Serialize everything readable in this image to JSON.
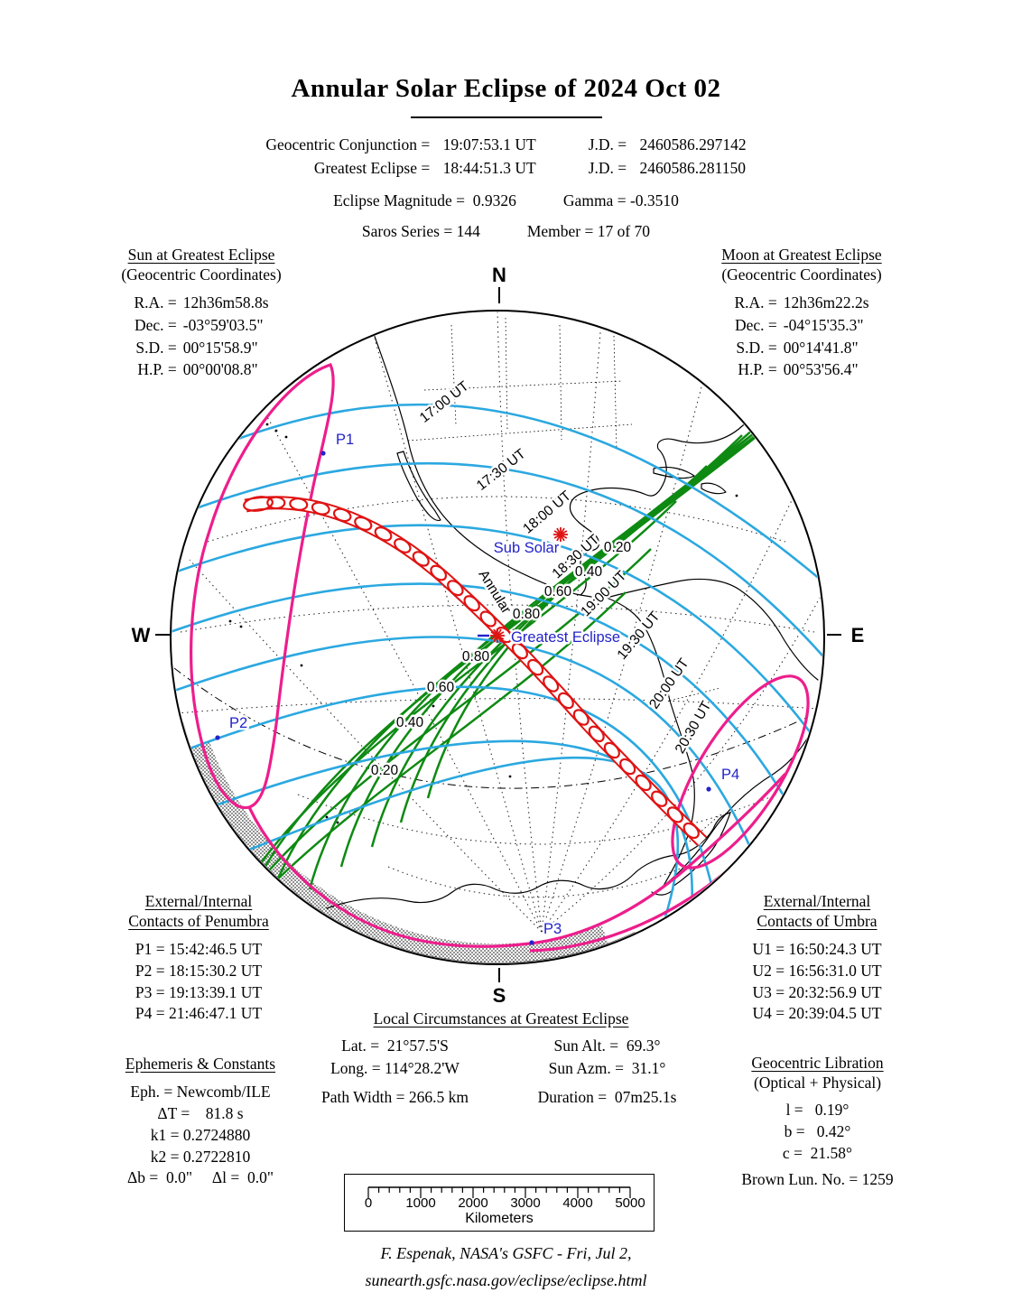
{
  "title": "Annular Solar Eclipse of  2024 Oct 02",
  "header": {
    "row1_label": "Geocentric Conjunction =",
    "row1_value": " 19:07:53.1 UT",
    "row1_jd_label": "J.D. =",
    "row1_jd": " 2460586.297142",
    "row2_label": "Greatest Eclipse =",
    "row2_value": " 18:44:51.3 UT",
    "row2_jd_label": "J.D. =",
    "row2_jd": " 2460586.281150",
    "magnitude": "Eclipse Magnitude =  0.9326",
    "gamma": "Gamma = -0.3510",
    "saros": "Saros Series = 144",
    "member": "Member = 17 of 70"
  },
  "sun": {
    "title": "Sun at Greatest Eclipse",
    "subtitle": "(Geocentric Coordinates)",
    "rows": [
      [
        "R.A. =",
        "12h36m58.8s"
      ],
      [
        "Dec. =",
        "-03°59'03.5\""
      ],
      [
        "S.D. =",
        "00°15'58.9\""
      ],
      [
        "H.P. =",
        "00°00'08.8\""
      ]
    ]
  },
  "moon": {
    "title": "Moon at Greatest Eclipse",
    "subtitle": "(Geocentric Coordinates)",
    "rows": [
      [
        "R.A. =",
        "12h36m22.2s"
      ],
      [
        "Dec. =",
        "-04°15'35.3\""
      ],
      [
        "S.D. =",
        "00°14'41.8\""
      ],
      [
        "H.P. =",
        "00°53'56.4\""
      ]
    ]
  },
  "penumbra_contacts": {
    "title1": "External/Internal",
    "title2": "Contacts of Penumbra",
    "rows": [
      "P1 = 15:42:46.5 UT",
      "P2 = 18:15:30.2 UT",
      "P3 = 19:13:39.1 UT",
      "P4 = 21:46:47.1 UT"
    ]
  },
  "umbra_contacts": {
    "title1": "External/Internal",
    "title2": "Contacts of Umbra",
    "rows": [
      "U1 = 16:50:24.3 UT",
      "U2 = 16:56:31.0 UT",
      "U3 = 20:32:56.9 UT",
      "U4 = 20:39:04.5 UT"
    ]
  },
  "local_circumstances": {
    "title": "Local Circumstances at Greatest Eclipse",
    "left_rows": [
      "Lat. =  21°57.5'S",
      "Long. = 114°28.2'W"
    ],
    "right_rows": [
      "Sun Alt. =  69.3°",
      "Sun Azm. =  31.1°"
    ],
    "bottom_left": "Path Width = 266.5 km",
    "bottom_right": "Duration =  07m25.1s"
  },
  "ephemeris": {
    "title": "Ephemeris & Constants",
    "rows": [
      "Eph. = Newcomb/ILE",
      "ΔT =    81.8 s",
      "k1 = 0.2724880",
      "k2 = 0.2722810",
      "Δb =  0.0\"     Δl =  0.0\""
    ]
  },
  "libration": {
    "title": "Geocentric Libration",
    "subtitle": "(Optical + Physical)",
    "rows": [
      "l =   0.19°",
      "b =   0.42°",
      "c =  21.58°"
    ],
    "brown": "Brown Lun. No. = 1259"
  },
  "scale_bar": {
    "ticks": [
      "0",
      "1000",
      "2000",
      "3000",
      "4000",
      "5000"
    ],
    "unit": "Kilometers"
  },
  "footer": {
    "line1": "F. Espenak, NASA's GSFC - Fri, Jul 2,",
    "line2": "sunearth.gsfc.nasa.gov/eclipse/eclipse.html"
  },
  "map": {
    "compass": {
      "n": "N",
      "s": "S",
      "e": "E",
      "w": "W"
    },
    "ut_labels": [
      "17:00 UT",
      "17:30 UT",
      "18:00 UT",
      "18:30 UT",
      "19:00 UT",
      "19:30 UT",
      "20:00 UT",
      "20:30 UT"
    ],
    "magnitude_labels": [
      "0.20",
      "0.40",
      "0.60",
      "0.80",
      "0.80",
      "0.60",
      "0.40",
      "0.20"
    ],
    "points": {
      "p1": "P1",
      "p2": "P2",
      "p3": "P3",
      "p4": "P4"
    },
    "sub_solar": "Sub Solar",
    "greatest_eclipse": "Greatest Eclipse",
    "path_label": "Annular",
    "colors": {
      "ut_line": "#2ba8e0",
      "magnitude_line": "#0e8a12",
      "central_path": "#df1313",
      "penumbra_limit": "#ed1e8c",
      "map_label_blue": "#2323cb"
    }
  }
}
